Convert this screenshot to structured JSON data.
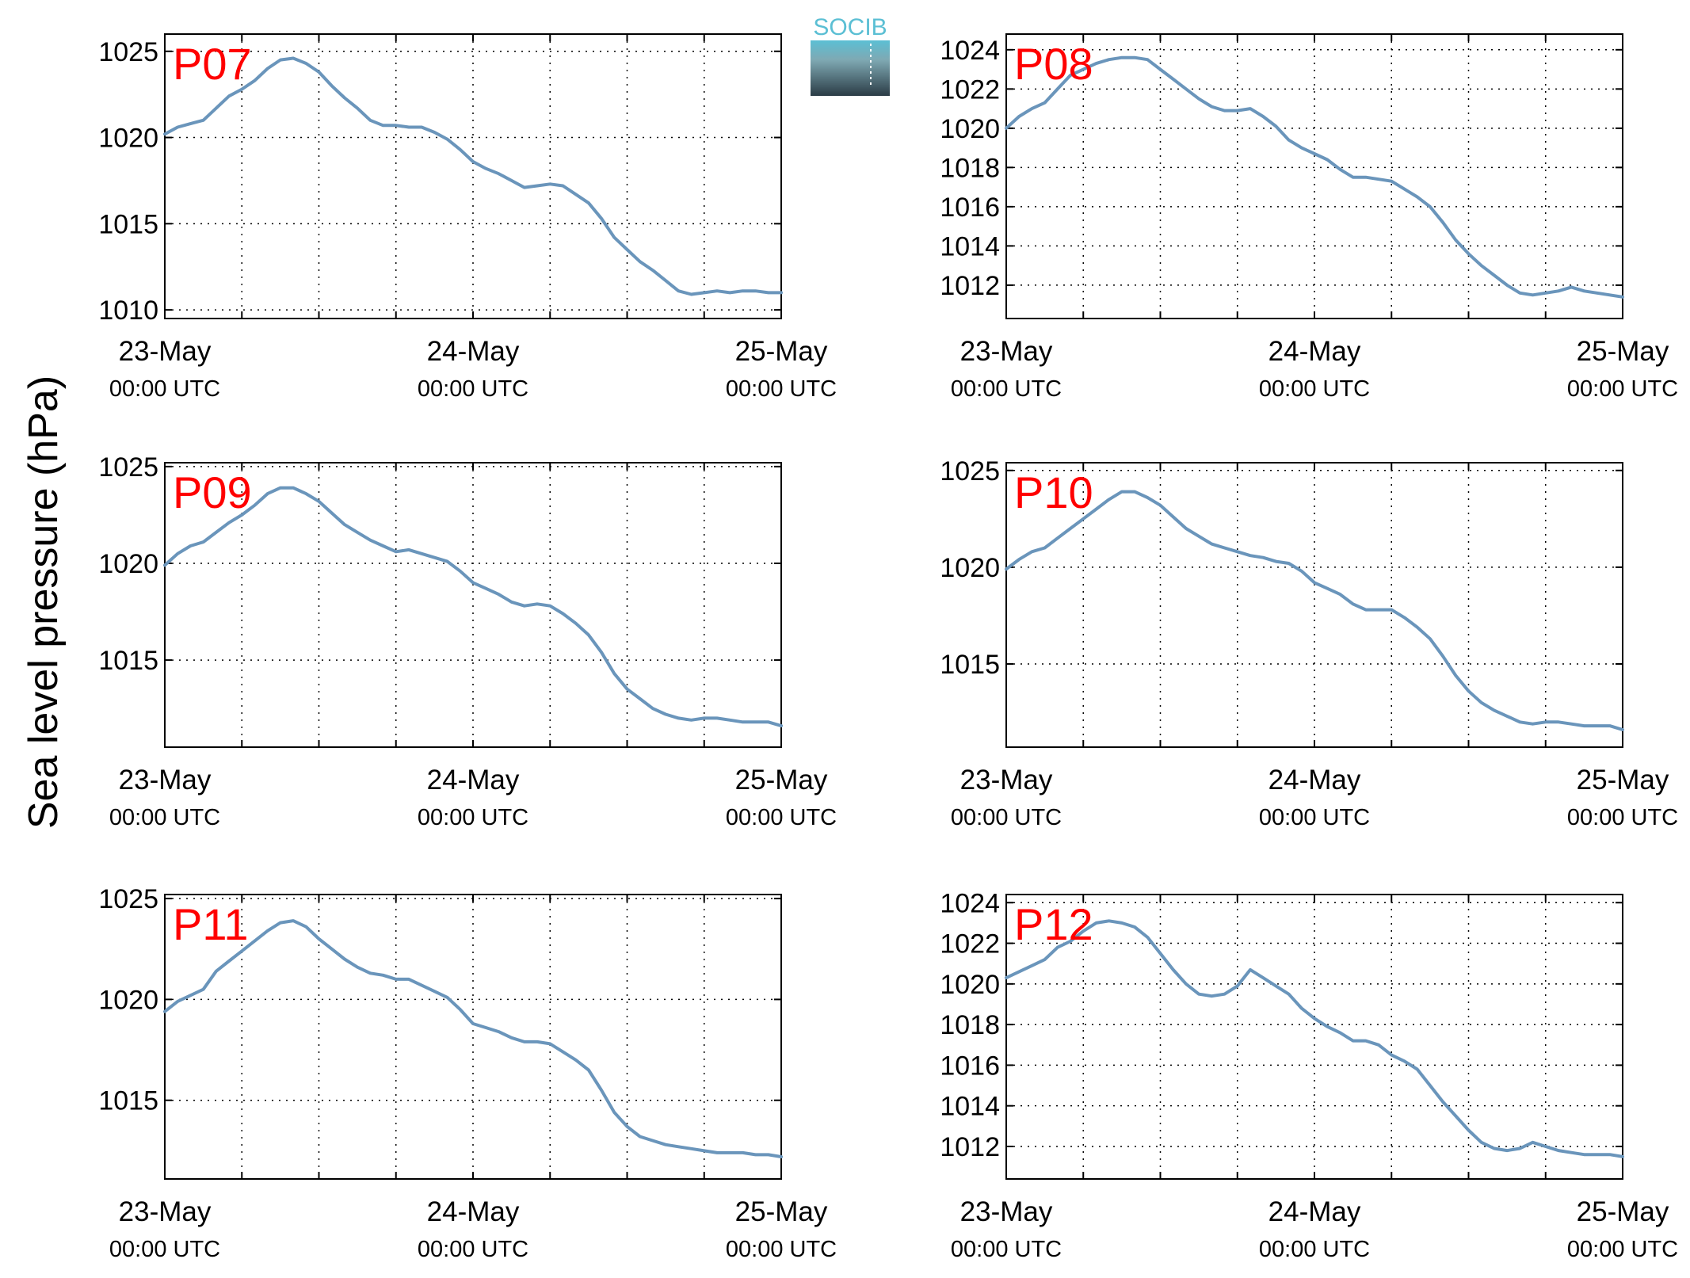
{
  "figure": {
    "ylabel": "Sea level pressure (hPa)",
    "logo_text": "SOCIB"
  },
  "colors": {
    "line": "#6a95bb",
    "panel_label": "#ff0000",
    "logo_top": "#5bbfd4",
    "logo_bottom": "#2b3c46"
  },
  "chart_data": [
    {
      "type": "line",
      "panel_label": "P07",
      "x_ticks": [
        {
          "line1": "23-May",
          "line2": "00:00 UTC"
        },
        {
          "line1": "24-May",
          "line2": "00:00 UTC"
        },
        {
          "line1": "25-May",
          "line2": "00:00 UTC"
        }
      ],
      "xlim": [
        0,
        48
      ],
      "ylim": [
        1009.5,
        1026
      ],
      "yticks": [
        1010,
        1015,
        1020,
        1025
      ],
      "grid": true,
      "x": [
        0,
        1,
        2,
        3,
        4,
        5,
        6,
        7,
        8,
        9,
        10,
        11,
        12,
        13,
        14,
        15,
        16,
        17,
        18,
        19,
        20,
        21,
        22,
        23,
        24,
        25,
        26,
        27,
        28,
        29,
        30,
        31,
        32,
        33,
        34,
        35,
        36,
        37,
        38,
        39,
        40,
        41,
        42,
        43,
        44,
        45,
        46,
        47,
        48
      ],
      "y": [
        1020.2,
        1020.6,
        1020.8,
        1021.0,
        1021.7,
        1022.4,
        1022.8,
        1023.3,
        1024.0,
        1024.5,
        1024.6,
        1024.3,
        1023.8,
        1023.0,
        1022.3,
        1021.7,
        1021.0,
        1020.7,
        1020.7,
        1020.6,
        1020.6,
        1020.3,
        1019.9,
        1019.3,
        1018.6,
        1018.2,
        1017.9,
        1017.5,
        1017.1,
        1017.2,
        1017.3,
        1017.2,
        1016.7,
        1016.2,
        1015.3,
        1014.2,
        1013.5,
        1012.8,
        1012.3,
        1011.7,
        1011.1,
        1010.9,
        1011.0,
        1011.1,
        1011.0,
        1011.1,
        1011.1,
        1011.0,
        1011.0
      ]
    },
    {
      "type": "line",
      "panel_label": "P08",
      "x_ticks": [
        {
          "line1": "23-May",
          "line2": "00:00 UTC"
        },
        {
          "line1": "24-May",
          "line2": "00:00 UTC"
        },
        {
          "line1": "25-May",
          "line2": "00:00 UTC"
        }
      ],
      "xlim": [
        0,
        48
      ],
      "ylim": [
        1010.3,
        1024.8
      ],
      "yticks": [
        1012,
        1014,
        1016,
        1018,
        1020,
        1022,
        1024
      ],
      "grid": true,
      "x": [
        0,
        1,
        2,
        3,
        4,
        5,
        6,
        7,
        8,
        9,
        10,
        11,
        12,
        13,
        14,
        15,
        16,
        17,
        18,
        19,
        20,
        21,
        22,
        23,
        24,
        25,
        26,
        27,
        28,
        29,
        30,
        31,
        32,
        33,
        34,
        35,
        36,
        37,
        38,
        39,
        40,
        41,
        42,
        43,
        44,
        45,
        46,
        47,
        48
      ],
      "y": [
        1020.0,
        1020.6,
        1021.0,
        1021.3,
        1022.0,
        1022.7,
        1023.0,
        1023.3,
        1023.5,
        1023.6,
        1023.6,
        1023.5,
        1023.0,
        1022.5,
        1022.0,
        1021.5,
        1021.1,
        1020.9,
        1020.9,
        1021.0,
        1020.6,
        1020.1,
        1019.4,
        1019.0,
        1018.7,
        1018.4,
        1017.9,
        1017.5,
        1017.5,
        1017.4,
        1017.3,
        1016.9,
        1016.5,
        1016.0,
        1015.2,
        1014.3,
        1013.6,
        1013.0,
        1012.5,
        1012.0,
        1011.6,
        1011.5,
        1011.6,
        1011.7,
        1011.9,
        1011.7,
        1011.6,
        1011.5,
        1011.4
      ]
    },
    {
      "type": "line",
      "panel_label": "P09",
      "x_ticks": [
        {
          "line1": "23-May",
          "line2": "00:00 UTC"
        },
        {
          "line1": "24-May",
          "line2": "00:00 UTC"
        },
        {
          "line1": "25-May",
          "line2": "00:00 UTC"
        }
      ],
      "xlim": [
        0,
        48
      ],
      "ylim": [
        1010.5,
        1025.2
      ],
      "yticks": [
        1015,
        1020,
        1025
      ],
      "grid": true,
      "x": [
        0,
        1,
        2,
        3,
        4,
        5,
        6,
        7,
        8,
        9,
        10,
        11,
        12,
        13,
        14,
        15,
        16,
        17,
        18,
        19,
        20,
        21,
        22,
        23,
        24,
        25,
        26,
        27,
        28,
        29,
        30,
        31,
        32,
        33,
        34,
        35,
        36,
        37,
        38,
        39,
        40,
        41,
        42,
        43,
        44,
        45,
        46,
        47,
        48
      ],
      "y": [
        1019.9,
        1020.5,
        1020.9,
        1021.1,
        1021.6,
        1022.1,
        1022.5,
        1023.0,
        1023.6,
        1023.9,
        1023.9,
        1023.6,
        1023.2,
        1022.6,
        1022.0,
        1021.6,
        1021.2,
        1020.9,
        1020.6,
        1020.7,
        1020.5,
        1020.3,
        1020.1,
        1019.6,
        1019.0,
        1018.7,
        1018.4,
        1018.0,
        1017.8,
        1017.9,
        1017.8,
        1017.4,
        1016.9,
        1016.3,
        1015.4,
        1014.3,
        1013.5,
        1013.0,
        1012.5,
        1012.2,
        1012.0,
        1011.9,
        1012.0,
        1012.0,
        1011.9,
        1011.8,
        1011.8,
        1011.8,
        1011.6
      ]
    },
    {
      "type": "line",
      "panel_label": "P10",
      "x_ticks": [
        {
          "line1": "23-May",
          "line2": "00:00 UTC"
        },
        {
          "line1": "24-May",
          "line2": "00:00 UTC"
        },
        {
          "line1": "25-May",
          "line2": "00:00 UTC"
        }
      ],
      "xlim": [
        0,
        48
      ],
      "ylim": [
        1010.7,
        1025.4
      ],
      "yticks": [
        1015,
        1020,
        1025
      ],
      "grid": true,
      "x": [
        0,
        1,
        2,
        3,
        4,
        5,
        6,
        7,
        8,
        9,
        10,
        11,
        12,
        13,
        14,
        15,
        16,
        17,
        18,
        19,
        20,
        21,
        22,
        23,
        24,
        25,
        26,
        27,
        28,
        29,
        30,
        31,
        32,
        33,
        34,
        35,
        36,
        37,
        38,
        39,
        40,
        41,
        42,
        43,
        44,
        45,
        46,
        47,
        48
      ],
      "y": [
        1019.9,
        1020.4,
        1020.8,
        1021.0,
        1021.5,
        1022.0,
        1022.5,
        1023.0,
        1023.5,
        1023.9,
        1023.9,
        1023.6,
        1023.2,
        1022.6,
        1022.0,
        1021.6,
        1021.2,
        1021.0,
        1020.8,
        1020.6,
        1020.5,
        1020.3,
        1020.2,
        1019.8,
        1019.2,
        1018.9,
        1018.6,
        1018.1,
        1017.8,
        1017.8,
        1017.8,
        1017.4,
        1016.9,
        1016.3,
        1015.4,
        1014.4,
        1013.6,
        1013.0,
        1012.6,
        1012.3,
        1012.0,
        1011.9,
        1012.0,
        1012.0,
        1011.9,
        1011.8,
        1011.8,
        1011.8,
        1011.6
      ]
    },
    {
      "type": "line",
      "panel_label": "P11",
      "x_ticks": [
        {
          "line1": "23-May",
          "line2": "00:00 UTC"
        },
        {
          "line1": "24-May",
          "line2": "00:00 UTC"
        },
        {
          "line1": "25-May",
          "line2": "00:00 UTC"
        }
      ],
      "xlim": [
        0,
        48
      ],
      "ylim": [
        1011.1,
        1025.2
      ],
      "yticks": [
        1015,
        1020,
        1025
      ],
      "grid": true,
      "x": [
        0,
        1,
        2,
        3,
        4,
        5,
        6,
        7,
        8,
        9,
        10,
        11,
        12,
        13,
        14,
        15,
        16,
        17,
        18,
        19,
        20,
        21,
        22,
        23,
        24,
        25,
        26,
        27,
        28,
        29,
        30,
        31,
        32,
        33,
        34,
        35,
        36,
        37,
        38,
        39,
        40,
        41,
        42,
        43,
        44,
        45,
        46,
        47,
        48
      ],
      "y": [
        1019.4,
        1019.9,
        1020.2,
        1020.5,
        1021.4,
        1021.9,
        1022.4,
        1022.9,
        1023.4,
        1023.8,
        1023.9,
        1023.6,
        1023.0,
        1022.5,
        1022.0,
        1021.6,
        1021.3,
        1021.2,
        1021.0,
        1021.0,
        1020.7,
        1020.4,
        1020.1,
        1019.5,
        1018.8,
        1018.6,
        1018.4,
        1018.1,
        1017.9,
        1017.9,
        1017.8,
        1017.4,
        1017.0,
        1016.5,
        1015.5,
        1014.4,
        1013.7,
        1013.2,
        1013.0,
        1012.8,
        1012.7,
        1012.6,
        1012.5,
        1012.4,
        1012.4,
        1012.4,
        1012.3,
        1012.3,
        1012.2
      ]
    },
    {
      "type": "line",
      "panel_label": "P12",
      "x_ticks": [
        {
          "line1": "23-May",
          "line2": "00:00 UTC"
        },
        {
          "line1": "24-May",
          "line2": "00:00 UTC"
        },
        {
          "line1": "25-May",
          "line2": "00:00 UTC"
        }
      ],
      "xlim": [
        0,
        48
      ],
      "ylim": [
        1010.4,
        1024.4
      ],
      "yticks": [
        1012,
        1014,
        1016,
        1018,
        1020,
        1022,
        1024
      ],
      "grid": true,
      "x": [
        0,
        1,
        2,
        3,
        4,
        5,
        6,
        7,
        8,
        9,
        10,
        11,
        12,
        13,
        14,
        15,
        16,
        17,
        18,
        19,
        20,
        21,
        22,
        23,
        24,
        25,
        26,
        27,
        28,
        29,
        30,
        31,
        32,
        33,
        34,
        35,
        36,
        37,
        38,
        39,
        40,
        41,
        42,
        43,
        44,
        45,
        46,
        47,
        48
      ],
      "y": [
        1020.3,
        1020.6,
        1020.9,
        1021.2,
        1021.8,
        1022.1,
        1022.6,
        1023.0,
        1023.1,
        1023.0,
        1022.8,
        1022.3,
        1021.5,
        1020.7,
        1020.0,
        1019.5,
        1019.4,
        1019.5,
        1019.9,
        1020.7,
        1020.3,
        1019.9,
        1019.5,
        1018.8,
        1018.3,
        1017.9,
        1017.6,
        1017.2,
        1017.2,
        1017.0,
        1016.5,
        1016.2,
        1015.8,
        1015.0,
        1014.2,
        1013.5,
        1012.8,
        1012.2,
        1011.9,
        1011.8,
        1011.9,
        1012.2,
        1012.0,
        1011.8,
        1011.7,
        1011.6,
        1011.6,
        1011.6,
        1011.5
      ]
    }
  ]
}
